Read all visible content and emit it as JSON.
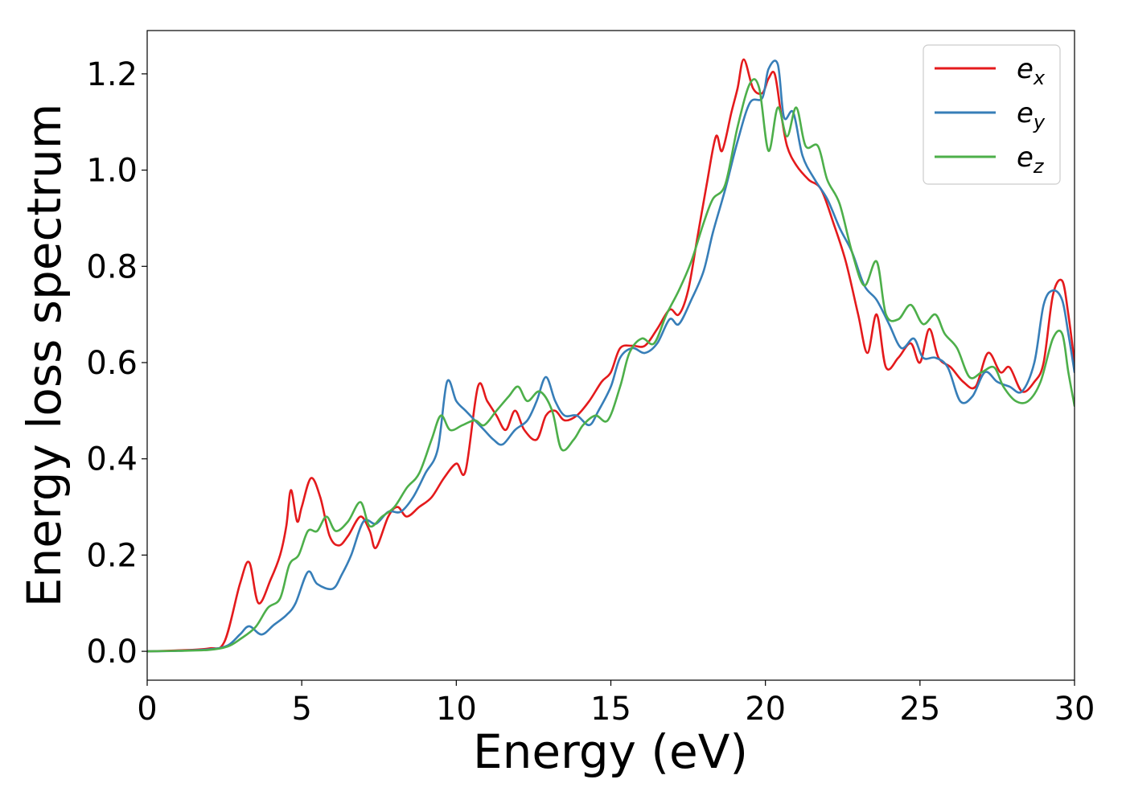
{
  "chart_data": {
    "type": "line",
    "title": "",
    "xlabel": "Energy (eV)",
    "ylabel": "Energy loss spectrum",
    "xlim": [
      0,
      30
    ],
    "ylim": [
      -0.06,
      1.29
    ],
    "xticks": [
      0,
      5,
      10,
      15,
      20,
      25,
      30
    ],
    "yticks": [
      0.0,
      0.2,
      0.4,
      0.6,
      0.8,
      1.0,
      1.2
    ],
    "xtick_labels": [
      "0",
      "5",
      "10",
      "15",
      "20",
      "25",
      "30"
    ],
    "ytick_labels": [
      "0.0",
      "0.2",
      "0.4",
      "0.6",
      "0.8",
      "1.0",
      "1.2"
    ],
    "grid": false,
    "legend_position": "top-right",
    "series": [
      {
        "name": "e_x",
        "label_base": "e",
        "label_sub": "x",
        "color": "#e41a1c",
        "points": [
          [
            0,
            0
          ],
          [
            1,
            0.002
          ],
          [
            2,
            0.006
          ],
          [
            2.5,
            0.02
          ],
          [
            3.0,
            0.14
          ],
          [
            3.3,
            0.185
          ],
          [
            3.6,
            0.1
          ],
          [
            4.0,
            0.15
          ],
          [
            4.3,
            0.2
          ],
          [
            4.5,
            0.26
          ],
          [
            4.65,
            0.335
          ],
          [
            4.85,
            0.27
          ],
          [
            5.0,
            0.3
          ],
          [
            5.3,
            0.36
          ],
          [
            5.6,
            0.32
          ],
          [
            5.9,
            0.24
          ],
          [
            6.2,
            0.22
          ],
          [
            6.5,
            0.24
          ],
          [
            6.9,
            0.28
          ],
          [
            7.2,
            0.25
          ],
          [
            7.4,
            0.215
          ],
          [
            7.8,
            0.28
          ],
          [
            8.1,
            0.3
          ],
          [
            8.4,
            0.28
          ],
          [
            8.8,
            0.3
          ],
          [
            9.2,
            0.32
          ],
          [
            9.6,
            0.36
          ],
          [
            10.0,
            0.39
          ],
          [
            10.3,
            0.375
          ],
          [
            10.7,
            0.55
          ],
          [
            11.0,
            0.52
          ],
          [
            11.3,
            0.49
          ],
          [
            11.6,
            0.46
          ],
          [
            11.9,
            0.5
          ],
          [
            12.2,
            0.46
          ],
          [
            12.6,
            0.44
          ],
          [
            12.9,
            0.49
          ],
          [
            13.2,
            0.5
          ],
          [
            13.5,
            0.48
          ],
          [
            13.9,
            0.49
          ],
          [
            14.3,
            0.52
          ],
          [
            14.7,
            0.56
          ],
          [
            15.0,
            0.58
          ],
          [
            15.3,
            0.63
          ],
          [
            15.7,
            0.635
          ],
          [
            16.1,
            0.635
          ],
          [
            16.5,
            0.67
          ],
          [
            16.9,
            0.71
          ],
          [
            17.2,
            0.7
          ],
          [
            17.5,
            0.75
          ],
          [
            17.8,
            0.86
          ],
          [
            18.1,
            0.97
          ],
          [
            18.4,
            1.07
          ],
          [
            18.6,
            1.04
          ],
          [
            18.9,
            1.12
          ],
          [
            19.1,
            1.17
          ],
          [
            19.3,
            1.23
          ],
          [
            19.6,
            1.17
          ],
          [
            19.9,
            1.16
          ],
          [
            20.1,
            1.19
          ],
          [
            20.3,
            1.2
          ],
          [
            20.5,
            1.12
          ],
          [
            20.7,
            1.05
          ],
          [
            21.0,
            1.01
          ],
          [
            21.4,
            0.98
          ],
          [
            21.8,
            0.96
          ],
          [
            22.2,
            0.89
          ],
          [
            22.6,
            0.81
          ],
          [
            23.0,
            0.7
          ],
          [
            23.3,
            0.62
          ],
          [
            23.6,
            0.7
          ],
          [
            23.9,
            0.59
          ],
          [
            24.3,
            0.61
          ],
          [
            24.7,
            0.64
          ],
          [
            25.0,
            0.6
          ],
          [
            25.3,
            0.67
          ],
          [
            25.6,
            0.61
          ],
          [
            26.0,
            0.59
          ],
          [
            26.4,
            0.56
          ],
          [
            26.8,
            0.55
          ],
          [
            27.2,
            0.62
          ],
          [
            27.6,
            0.58
          ],
          [
            27.9,
            0.59
          ],
          [
            28.3,
            0.54
          ],
          [
            28.7,
            0.56
          ],
          [
            29.0,
            0.6
          ],
          [
            29.3,
            0.74
          ],
          [
            29.6,
            0.77
          ],
          [
            29.8,
            0.7
          ],
          [
            30,
            0.6
          ]
        ]
      },
      {
        "name": "e_y",
        "label_base": "e",
        "label_sub": "y",
        "color": "#377eb8",
        "points": [
          [
            0,
            0
          ],
          [
            1,
            0.001
          ],
          [
            2,
            0.004
          ],
          [
            2.6,
            0.012
          ],
          [
            3.0,
            0.035
          ],
          [
            3.3,
            0.052
          ],
          [
            3.7,
            0.035
          ],
          [
            4.1,
            0.055
          ],
          [
            4.5,
            0.075
          ],
          [
            4.8,
            0.1
          ],
          [
            5.2,
            0.165
          ],
          [
            5.5,
            0.14
          ],
          [
            6.0,
            0.13
          ],
          [
            6.3,
            0.16
          ],
          [
            6.6,
            0.2
          ],
          [
            7.0,
            0.27
          ],
          [
            7.4,
            0.265
          ],
          [
            7.8,
            0.29
          ],
          [
            8.2,
            0.29
          ],
          [
            8.6,
            0.32
          ],
          [
            9.0,
            0.37
          ],
          [
            9.4,
            0.42
          ],
          [
            9.7,
            0.56
          ],
          [
            10.0,
            0.52
          ],
          [
            10.3,
            0.5
          ],
          [
            10.6,
            0.48
          ],
          [
            10.9,
            0.46
          ],
          [
            11.2,
            0.44
          ],
          [
            11.5,
            0.43
          ],
          [
            11.9,
            0.46
          ],
          [
            12.3,
            0.48
          ],
          [
            12.6,
            0.52
          ],
          [
            12.9,
            0.57
          ],
          [
            13.2,
            0.52
          ],
          [
            13.5,
            0.49
          ],
          [
            13.9,
            0.49
          ],
          [
            14.3,
            0.47
          ],
          [
            14.6,
            0.5
          ],
          [
            15.0,
            0.55
          ],
          [
            15.3,
            0.61
          ],
          [
            15.7,
            0.63
          ],
          [
            16.1,
            0.62
          ],
          [
            16.5,
            0.64
          ],
          [
            16.9,
            0.69
          ],
          [
            17.2,
            0.68
          ],
          [
            17.6,
            0.73
          ],
          [
            18.0,
            0.79
          ],
          [
            18.3,
            0.87
          ],
          [
            18.7,
            0.96
          ],
          [
            19.1,
            1.06
          ],
          [
            19.5,
            1.14
          ],
          [
            19.9,
            1.15
          ],
          [
            20.1,
            1.21
          ],
          [
            20.4,
            1.22
          ],
          [
            20.6,
            1.11
          ],
          [
            20.9,
            1.12
          ],
          [
            21.2,
            1.03
          ],
          [
            21.6,
            0.98
          ],
          [
            22.0,
            0.94
          ],
          [
            22.4,
            0.88
          ],
          [
            22.8,
            0.83
          ],
          [
            23.2,
            0.76
          ],
          [
            23.6,
            0.73
          ],
          [
            24.0,
            0.68
          ],
          [
            24.4,
            0.63
          ],
          [
            24.8,
            0.65
          ],
          [
            25.1,
            0.61
          ],
          [
            25.5,
            0.61
          ],
          [
            25.9,
            0.59
          ],
          [
            26.3,
            0.52
          ],
          [
            26.7,
            0.53
          ],
          [
            27.1,
            0.58
          ],
          [
            27.5,
            0.56
          ],
          [
            27.9,
            0.55
          ],
          [
            28.3,
            0.54
          ],
          [
            28.7,
            0.6
          ],
          [
            29.0,
            0.72
          ],
          [
            29.3,
            0.75
          ],
          [
            29.6,
            0.73
          ],
          [
            29.8,
            0.66
          ],
          [
            30,
            0.58
          ]
        ]
      },
      {
        "name": "e_z",
        "label_base": "e",
        "label_sub": "z",
        "color": "#4daf4a",
        "points": [
          [
            0,
            0
          ],
          [
            1,
            0.001
          ],
          [
            2,
            0.003
          ],
          [
            2.6,
            0.01
          ],
          [
            3.0,
            0.025
          ],
          [
            3.5,
            0.05
          ],
          [
            3.9,
            0.09
          ],
          [
            4.3,
            0.11
          ],
          [
            4.6,
            0.18
          ],
          [
            4.9,
            0.2
          ],
          [
            5.2,
            0.25
          ],
          [
            5.5,
            0.25
          ],
          [
            5.8,
            0.28
          ],
          [
            6.1,
            0.25
          ],
          [
            6.5,
            0.27
          ],
          [
            6.9,
            0.31
          ],
          [
            7.2,
            0.26
          ],
          [
            7.6,
            0.28
          ],
          [
            8.0,
            0.3
          ],
          [
            8.4,
            0.34
          ],
          [
            8.8,
            0.37
          ],
          [
            9.2,
            0.44
          ],
          [
            9.5,
            0.49
          ],
          [
            9.8,
            0.46
          ],
          [
            10.2,
            0.47
          ],
          [
            10.6,
            0.48
          ],
          [
            10.9,
            0.47
          ],
          [
            11.3,
            0.5
          ],
          [
            11.7,
            0.53
          ],
          [
            12.0,
            0.55
          ],
          [
            12.3,
            0.52
          ],
          [
            12.7,
            0.54
          ],
          [
            13.1,
            0.5
          ],
          [
            13.4,
            0.42
          ],
          [
            13.8,
            0.44
          ],
          [
            14.1,
            0.47
          ],
          [
            14.5,
            0.49
          ],
          [
            14.9,
            0.48
          ],
          [
            15.3,
            0.55
          ],
          [
            15.6,
            0.62
          ],
          [
            16.0,
            0.65
          ],
          [
            16.4,
            0.64
          ],
          [
            16.8,
            0.7
          ],
          [
            17.2,
            0.75
          ],
          [
            17.6,
            0.81
          ],
          [
            18.0,
            0.89
          ],
          [
            18.3,
            0.94
          ],
          [
            18.7,
            0.97
          ],
          [
            19.1,
            1.09
          ],
          [
            19.5,
            1.18
          ],
          [
            19.8,
            1.17
          ],
          [
            20.1,
            1.04
          ],
          [
            20.4,
            1.13
          ],
          [
            20.7,
            1.07
          ],
          [
            21.0,
            1.13
          ],
          [
            21.3,
            1.05
          ],
          [
            21.7,
            1.05
          ],
          [
            22.0,
            0.98
          ],
          [
            22.4,
            0.93
          ],
          [
            22.8,
            0.83
          ],
          [
            23.2,
            0.76
          ],
          [
            23.6,
            0.81
          ],
          [
            23.9,
            0.7
          ],
          [
            24.3,
            0.69
          ],
          [
            24.7,
            0.72
          ],
          [
            25.1,
            0.68
          ],
          [
            25.5,
            0.7
          ],
          [
            25.8,
            0.66
          ],
          [
            26.2,
            0.63
          ],
          [
            26.6,
            0.57
          ],
          [
            27.0,
            0.58
          ],
          [
            27.4,
            0.59
          ],
          [
            27.7,
            0.55
          ],
          [
            28.1,
            0.52
          ],
          [
            28.5,
            0.52
          ],
          [
            28.9,
            0.56
          ],
          [
            29.3,
            0.65
          ],
          [
            29.6,
            0.66
          ],
          [
            29.8,
            0.58
          ],
          [
            30,
            0.51
          ]
        ]
      }
    ]
  }
}
